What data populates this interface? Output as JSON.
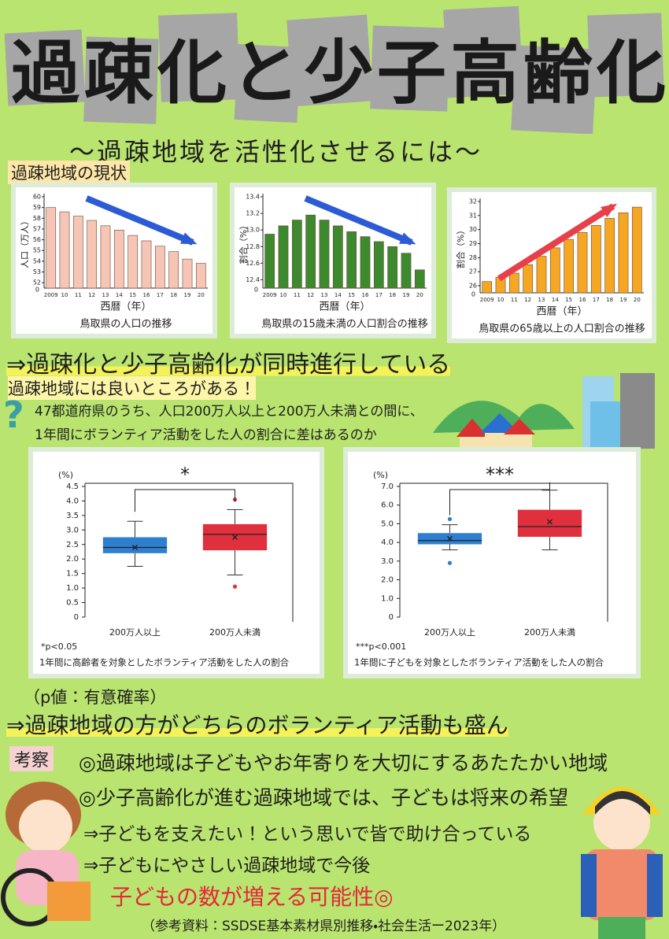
{
  "title": "過疎化と少子高齢化",
  "subtitle": "〜過疎地域を活性化させるには〜",
  "section_current": "過疎地域の現状",
  "trend_charts": [
    {
      "type": "bar",
      "caption": "鳥取県の人口の推移",
      "x_label": "西暦（年）",
      "y_label": "人口（万人）",
      "axis_break_label": "0",
      "color": "#f6c5b5",
      "categories": [
        "2009",
        "10",
        "11",
        "12",
        "13",
        "14",
        "15",
        "16",
        "17",
        "18",
        "19",
        "20"
      ],
      "values": [
        59,
        58.6,
        58.2,
        57.8,
        57.3,
        56.9,
        56.4,
        55.9,
        55.4,
        54.9,
        54.2,
        53.8
      ],
      "ylim": [
        51.5,
        60
      ],
      "yticks": [
        52,
        53,
        54,
        55,
        56,
        57,
        58,
        59,
        60
      ]
    },
    {
      "type": "bar",
      "caption": "鳥取県の15歳未満の人口割合の推移",
      "x_label": "西暦（年）",
      "y_label": "割合（%）",
      "axis_break_label": "0",
      "color": "#3d8a2e",
      "categories": [
        "2009",
        "10",
        "11",
        "12",
        "13",
        "14",
        "15",
        "16",
        "17",
        "18",
        "19",
        "20"
      ],
      "values": [
        12.95,
        13.05,
        13.12,
        13.18,
        13.12,
        13.05,
        12.98,
        12.92,
        12.86,
        12.8,
        12.72,
        12.52
      ],
      "ylim": [
        12.3,
        13.4
      ],
      "yticks": [
        {
          "value": 12.4,
          "label": "12.4"
        },
        {
          "value": 12.6,
          "label": "12.6"
        },
        {
          "value": 12.8,
          "label": "12.8"
        },
        {
          "value": 13,
          "label": "13.0"
        },
        {
          "value": 13.2,
          "label": "13.2"
        },
        {
          "value": 13.4,
          "label": "13.4"
        }
      ]
    },
    {
      "type": "bar",
      "caption": "鳥取県の65歳以上の人口割合の推移",
      "x_label": "西暦（年）",
      "y_label": "割合（%）",
      "axis_break_label": "0",
      "color": "#f5a623",
      "categories": [
        "2009",
        "10",
        "11",
        "12",
        "13",
        "14",
        "15",
        "16",
        "17",
        "18",
        "19",
        "20"
      ],
      "values": [
        26.3,
        26.6,
        26.9,
        27.5,
        28.1,
        28.7,
        29.3,
        29.8,
        30.3,
        30.8,
        31.2,
        31.6
      ],
      "ylim": [
        25.5,
        32
      ],
      "yticks": [
        26,
        27,
        28,
        29,
        30,
        31,
        32
      ]
    }
  ],
  "conclusion1": "⇒過疎化と少子高齢化が同時進行している",
  "section_good": "過疎地域には良いところがある！",
  "question_mark": "?",
  "question": [
    "47都道府県のうち、人口200万人以上と200万人未満との間に、",
    "1年間にボランティア活動をした人の割合に差はあるのか"
  ],
  "box_charts": [
    {
      "type": "box",
      "y_unit_label": "(%)",
      "significance": "*",
      "note": "*p<0.05",
      "caption": "1年間に高齢者を対象としたボランティア活動をした人の割合",
      "categories": [
        "200万人以上",
        "200万人未満"
      ],
      "series": [
        {
          "color": "#2f7fd0",
          "min": 1.75,
          "q1": 2.2,
          "median": 2.4,
          "q3": 2.75,
          "max": 3.3,
          "mean": 2.4,
          "outliers": []
        },
        {
          "color": "#e0303e",
          "min": 1.45,
          "q1": 2.3,
          "median": 2.85,
          "q3": 3.2,
          "max": 3.7,
          "mean": 2.75,
          "outliers": [
            4.05,
            1.05
          ]
        }
      ],
      "ylim": [
        0,
        4.5
      ],
      "yticks": [
        0,
        0.5,
        {
          "value": 1,
          "label": "1.0"
        },
        1.5,
        {
          "value": 2,
          "label": "2.0"
        },
        2.5,
        {
          "value": 3,
          "label": "3.0"
        },
        3.5,
        {
          "value": 4,
          "label": "4.0"
        },
        4.5
      ]
    },
    {
      "type": "box",
      "y_unit_label": "(%)",
      "significance": "***",
      "note": "***p<0.001",
      "caption": "1年間に子どもを対象としたボランティア活動をした人の割合",
      "categories": [
        "200万人以上",
        "200万人未満"
      ],
      "series": [
        {
          "color": "#2f7fd0",
          "min": 3.6,
          "q1": 3.9,
          "median": 4.1,
          "q3": 4.5,
          "max": 4.95,
          "mean": 4.2,
          "outliers": [
            5.25,
            2.9
          ]
        },
        {
          "color": "#e0303e",
          "min": 3.6,
          "q1": 4.3,
          "median": 4.85,
          "q3": 5.75,
          "max": 6.8,
          "mean": 5.1,
          "outliers": []
        }
      ],
      "ylim": [
        0,
        7
      ],
      "yticks": [
        0,
        {
          "value": 1,
          "label": "1.0"
        },
        {
          "value": 2,
          "label": "2.0"
        },
        {
          "value": 3,
          "label": "3.0"
        },
        {
          "value": 4,
          "label": "4.0"
        },
        {
          "value": 5,
          "label": "5.0"
        },
        {
          "value": 6,
          "label": "6.0"
        },
        {
          "value": 7,
          "label": "7.0"
        }
      ]
    }
  ],
  "p_value_note": "（p値：有意確率）",
  "conclusion2": "⇒過疎地域の方がどちらのボランティア活動も盛ん",
  "discussion": {
    "heading": "考察",
    "lines": [
      "◎過疎地域は子どもやお年寄りを大切にするあたたかい地域",
      "◎少子高齢化が進む過疎地域では、子どもは将来の希望",
      "⇒子どもを支えたい！という思いで皆で助け合っている",
      "⇒子どもにやさしい過疎地域で今後",
      "子どもの数が増える可能性◎"
    ]
  },
  "source": "（参考資料：SSDSE基本素材県別推移・社会生活ー2023年）"
}
